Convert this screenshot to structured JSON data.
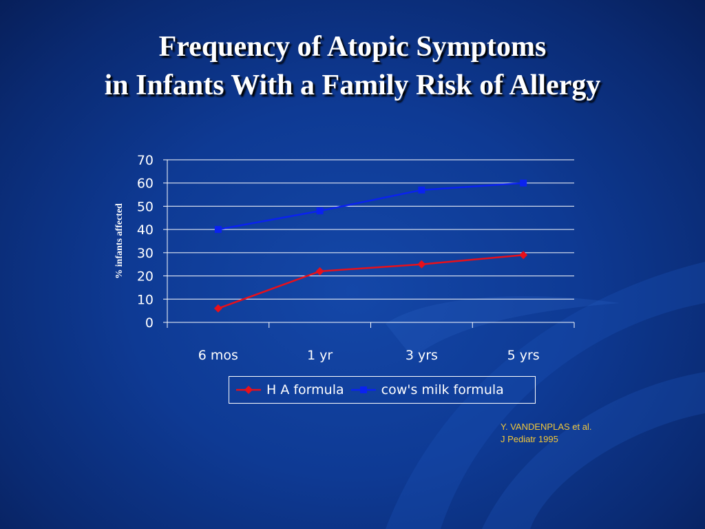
{
  "slide": {
    "title_line1": "Frequency of Atopic Symptoms",
    "title_line2": "in Infants With a Family Risk of Allergy",
    "citation_line1": "Y. VANDENPLAS et al.",
    "citation_line2": "J Pediatr 1995"
  },
  "colors": {
    "background": "#0e3a94",
    "ha_formula": "#e8101a",
    "cows_milk_formula": "#0a22f0",
    "citation": "#f3c83a"
  },
  "chart_data": {
    "type": "line",
    "title": "",
    "xlabel": "",
    "ylabel": "% infants affected",
    "ylim": [
      0,
      70
    ],
    "yticks": [
      0,
      10,
      20,
      30,
      40,
      50,
      60,
      70
    ],
    "grid": true,
    "legend_position": "bottom",
    "categories": [
      "6 mos",
      "1 yr",
      "3 yrs",
      "5 yrs"
    ],
    "series": [
      {
        "name": "H A formula",
        "marker": "diamond",
        "color": "#e8101a",
        "values": [
          6,
          22,
          25,
          29
        ]
      },
      {
        "name": "cow's milk formula",
        "marker": "square",
        "color": "#0a22f0",
        "values": [
          40,
          48,
          57,
          60
        ]
      }
    ]
  }
}
